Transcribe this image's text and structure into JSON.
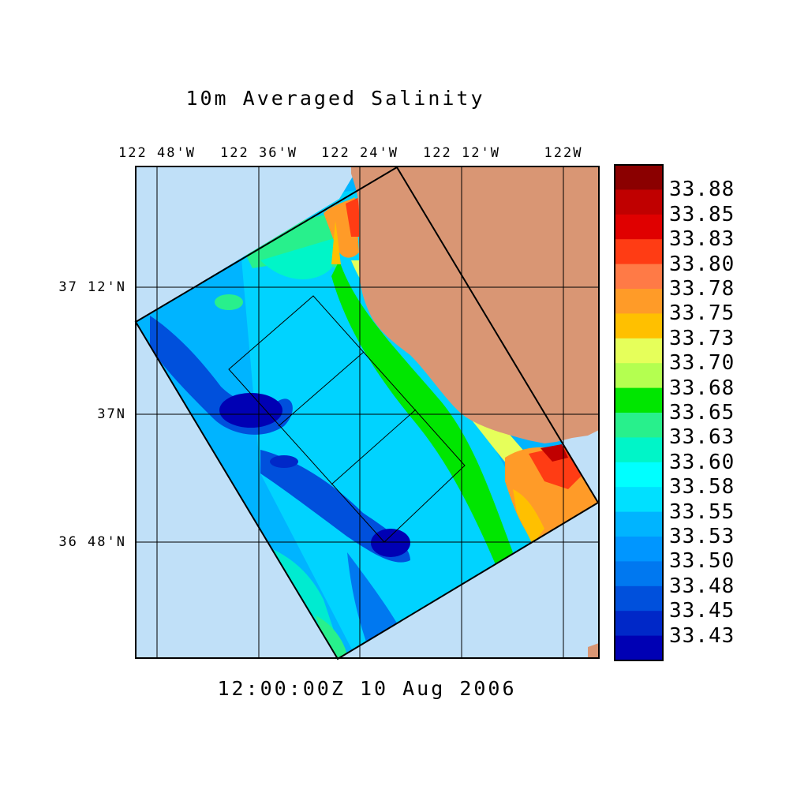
{
  "title": "10m Averaged Salinity",
  "timestamp": "12:00:00Z  10 Aug 2006",
  "longitude_labels": [
    "122 48'W",
    "122 36'W",
    "122 24'W",
    "122 12'W",
    "122W"
  ],
  "latitude_labels": [
    "37 12'N",
    "37N",
    "36 48'N"
  ],
  "colorbar": {
    "labels": [
      "33.88",
      "33.85",
      "33.83",
      "33.80",
      "33.78",
      "33.75",
      "33.73",
      "33.70",
      "33.68",
      "33.65",
      "33.63",
      "33.60",
      "33.58",
      "33.55",
      "33.53",
      "33.50",
      "33.48",
      "33.45",
      "33.43"
    ],
    "colors": [
      "#8b0000",
      "#c00000",
      "#e00000",
      "#ff3c14",
      "#ff7a46",
      "#ff9b28",
      "#ffc000",
      "#e6ff5a",
      "#b4ff50",
      "#00e600",
      "#28f08c",
      "#00f5c8",
      "#00ffff",
      "#00e0ff",
      "#00b4ff",
      "#0096ff",
      "#0078f0",
      "#0050dc",
      "#0028c8",
      "#0000b4"
    ]
  },
  "colors": {
    "ocean": "#c0e0f8",
    "land": "#d99674",
    "grid": "#000000"
  }
}
